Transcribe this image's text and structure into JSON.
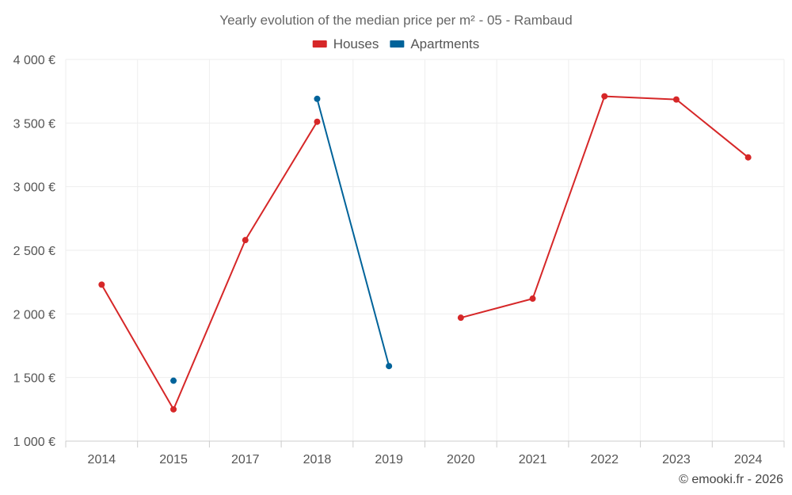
{
  "chart_data": {
    "type": "line",
    "title": "Yearly evolution of the median price per m² - 05 - Rambaud",
    "categories": [
      "2014",
      "2015",
      "2017",
      "2018",
      "2019",
      "2020",
      "2021",
      "2022",
      "2023",
      "2024"
    ],
    "series": [
      {
        "name": "Houses",
        "color": "#d62728",
        "values": [
          2230,
          1250,
          2580,
          3510,
          null,
          1970,
          2120,
          3710,
          3685,
          3230
        ]
      },
      {
        "name": "Apartments",
        "color": "#00639a",
        "values": [
          null,
          1475,
          null,
          3690,
          1590,
          null,
          null,
          null,
          null,
          null
        ]
      }
    ],
    "y_ticks": [
      "1 000 €",
      "1 500 €",
      "2 000 €",
      "2 500 €",
      "3 000 €",
      "3 500 €",
      "4 000 €"
    ],
    "y_tick_values": [
      1000,
      1500,
      2000,
      2500,
      3000,
      3500,
      4000
    ],
    "ylim": [
      1000,
      4000
    ],
    "xlabel": "",
    "ylabel": "",
    "grid": true,
    "legend_position": "top-center"
  },
  "credit": "© emooki.fr - 2026"
}
